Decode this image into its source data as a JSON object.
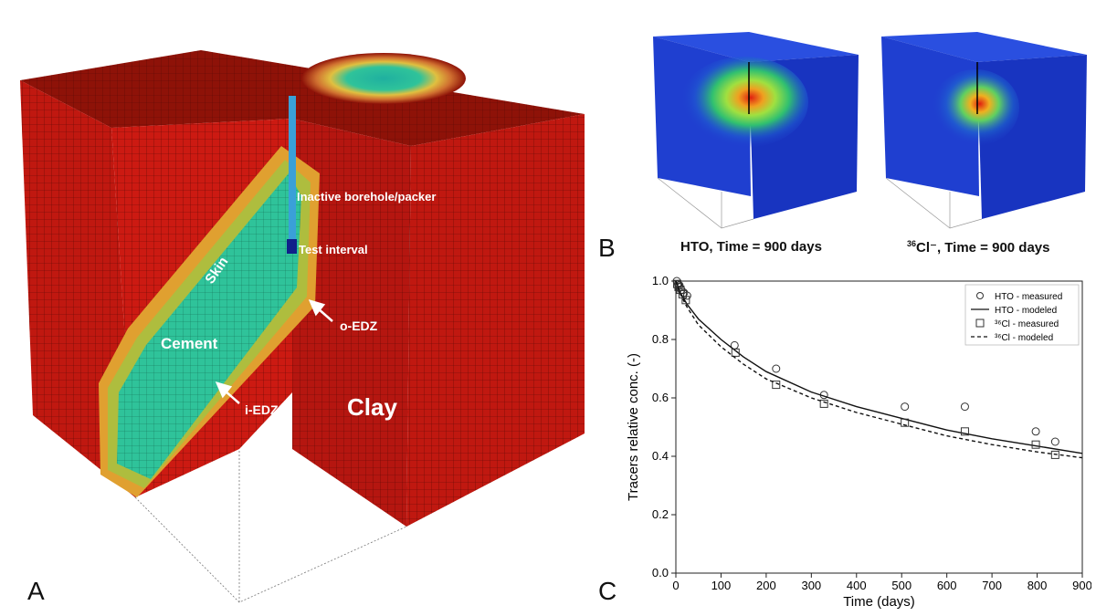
{
  "panels": {
    "a": "A",
    "b": "B",
    "c": "C"
  },
  "model_labels": {
    "borehole": "Inactive borehole/packer",
    "test_interval": "Test interval",
    "skin": "Skin",
    "cement": "Cement",
    "oedz": "o-EDZ",
    "iedz": "i-EDZ",
    "clay": "Clay"
  },
  "snapshots": [
    {
      "tracer_sup": "36",
      "tracer": "HTO",
      "time_label": ", Time = 900 days"
    },
    {
      "tracer_sup": "36",
      "tracer": "Cl⁻",
      "time_label": ", Time = 900 days"
    }
  ],
  "colors": {
    "clay": "#cc1a12",
    "clay_top": "#8e1208",
    "cement": "#2fc39a",
    "skin": "#e0a030",
    "borehole": "#3aa0d8",
    "box_blue": "#1f3fd0"
  },
  "chart_data": {
    "type": "scatter",
    "xlabel": "Time (days)",
    "ylabel": "Tracers relative conc. (-)",
    "xlim": [
      0,
      900
    ],
    "ylim": [
      0.0,
      1.0
    ],
    "xticks": [
      0,
      100,
      200,
      300,
      400,
      500,
      600,
      700,
      800,
      900
    ],
    "yticks": [
      0.0,
      0.2,
      0.4,
      0.6,
      0.8,
      1.0
    ],
    "legend_position": "top-right",
    "series": [
      {
        "name": "HTO - measured",
        "style": "circle-marker",
        "x": [
          2,
          5,
          8,
          12,
          18,
          25,
          130,
          222,
          328,
          507,
          640,
          797,
          840
        ],
        "y": [
          1.0,
          0.99,
          0.985,
          0.97,
          0.96,
          0.95,
          0.78,
          0.7,
          0.61,
          0.57,
          0.57,
          0.485,
          0.45
        ]
      },
      {
        "name": "HTO - modeled",
        "style": "solid-line",
        "x": [
          0,
          10,
          25,
          50,
          100,
          150,
          200,
          300,
          400,
          500,
          600,
          700,
          800,
          900
        ],
        "y": [
          1.0,
          0.96,
          0.92,
          0.87,
          0.8,
          0.74,
          0.69,
          0.62,
          0.57,
          0.53,
          0.49,
          0.46,
          0.435,
          0.41
        ]
      },
      {
        "name": "³⁶Cl - measured",
        "style": "square-marker",
        "x": [
          3,
          6,
          10,
          15,
          22,
          132,
          222,
          328,
          507,
          640,
          797,
          840
        ],
        "y": [
          0.99,
          0.98,
          0.97,
          0.955,
          0.935,
          0.755,
          0.645,
          0.58,
          0.515,
          0.485,
          0.44,
          0.405
        ]
      },
      {
        "name": "³⁶Cl - modeled",
        "style": "dashed-line",
        "x": [
          0,
          10,
          25,
          50,
          100,
          150,
          200,
          300,
          400,
          500,
          600,
          700,
          800,
          900
        ],
        "y": [
          1.0,
          0.955,
          0.91,
          0.85,
          0.775,
          0.715,
          0.665,
          0.6,
          0.55,
          0.51,
          0.47,
          0.44,
          0.415,
          0.395
        ]
      }
    ]
  }
}
